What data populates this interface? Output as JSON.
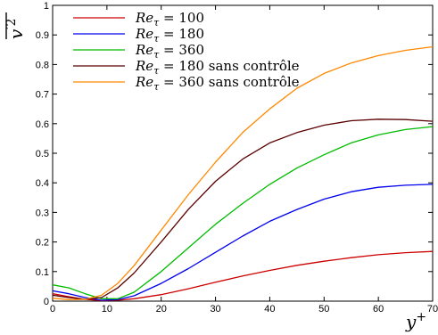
{
  "chart_data": {
    "type": "line",
    "xlabel": "y",
    "xlabel_sup": "+",
    "ylabel": "v",
    "ylabel_sup": "′2",
    "xlim": [
      0,
      70
    ],
    "ylim": [
      0,
      1
    ],
    "xticks": [
      "0",
      "10",
      "20",
      "30",
      "40",
      "50",
      "60",
      "70"
    ],
    "yticks": [
      "0",
      "0.1",
      "0.2",
      "0.3",
      "0.4",
      "0.5",
      "0.6",
      "0.7",
      "0.8",
      "0.9",
      "1"
    ],
    "grid": false,
    "legend_position": "top-left",
    "series": [
      {
        "name": "Re_τ = 100",
        "legend_main": "Re",
        "legend_sub": "τ",
        "legend_rest": " = 100",
        "color": "#cc0000",
        "x": [
          0,
          3,
          6,
          9,
          12,
          15,
          20,
          25,
          30,
          35,
          40,
          45,
          50,
          55,
          60,
          65,
          70
        ],
        "y": [
          0.025,
          0.015,
          0.006,
          0.002,
          0.003,
          0.008,
          0.022,
          0.042,
          0.064,
          0.085,
          0.104,
          0.121,
          0.135,
          0.147,
          0.157,
          0.164,
          0.168
        ]
      },
      {
        "name": "Re_τ = 180",
        "legend_main": "Re",
        "legend_sub": "τ",
        "legend_rest": " = 180",
        "color": "#0000ee",
        "x": [
          0,
          3,
          6,
          9,
          12,
          15,
          20,
          25,
          30,
          35,
          40,
          45,
          50,
          55,
          60,
          65,
          70
        ],
        "y": [
          0.035,
          0.025,
          0.012,
          0.003,
          0.005,
          0.018,
          0.06,
          0.11,
          0.165,
          0.22,
          0.27,
          0.31,
          0.345,
          0.37,
          0.385,
          0.392,
          0.395
        ]
      },
      {
        "name": "Re_τ = 360",
        "legend_main": "Re",
        "legend_sub": "τ",
        "legend_rest": " = 360",
        "color": "#00bb00",
        "x": [
          0,
          3,
          6,
          9,
          12,
          15,
          20,
          25,
          30,
          35,
          40,
          45,
          50,
          55,
          60,
          65,
          70
        ],
        "y": [
          0.055,
          0.045,
          0.025,
          0.008,
          0.008,
          0.03,
          0.1,
          0.18,
          0.26,
          0.33,
          0.395,
          0.45,
          0.495,
          0.535,
          0.562,
          0.58,
          0.59
        ]
      },
      {
        "name": "Re_τ = 180 sans contrôle",
        "legend_main": "Re",
        "legend_sub": "τ",
        "legend_rest": " = 180 sans contrôle",
        "color": "#5a0000",
        "x": [
          0,
          3,
          6,
          9,
          12,
          15,
          20,
          25,
          30,
          35,
          40,
          45,
          50,
          55,
          60,
          65,
          70
        ],
        "y": [
          0.02,
          0.012,
          0.006,
          0.012,
          0.045,
          0.095,
          0.2,
          0.31,
          0.405,
          0.48,
          0.535,
          0.57,
          0.595,
          0.61,
          0.615,
          0.614,
          0.608
        ]
      },
      {
        "name": "Re_τ = 360 sans contrôle",
        "legend_main": "Re",
        "legend_sub": "τ",
        "legend_rest": " = 360 sans contrôle",
        "color": "#ff8800",
        "x": [
          0,
          3,
          6,
          9,
          12,
          15,
          20,
          25,
          30,
          35,
          40,
          45,
          50,
          55,
          60,
          65,
          70
        ],
        "y": [
          0.01,
          0.005,
          0.006,
          0.02,
          0.06,
          0.12,
          0.24,
          0.36,
          0.47,
          0.57,
          0.65,
          0.72,
          0.77,
          0.805,
          0.83,
          0.848,
          0.86
        ]
      }
    ]
  }
}
